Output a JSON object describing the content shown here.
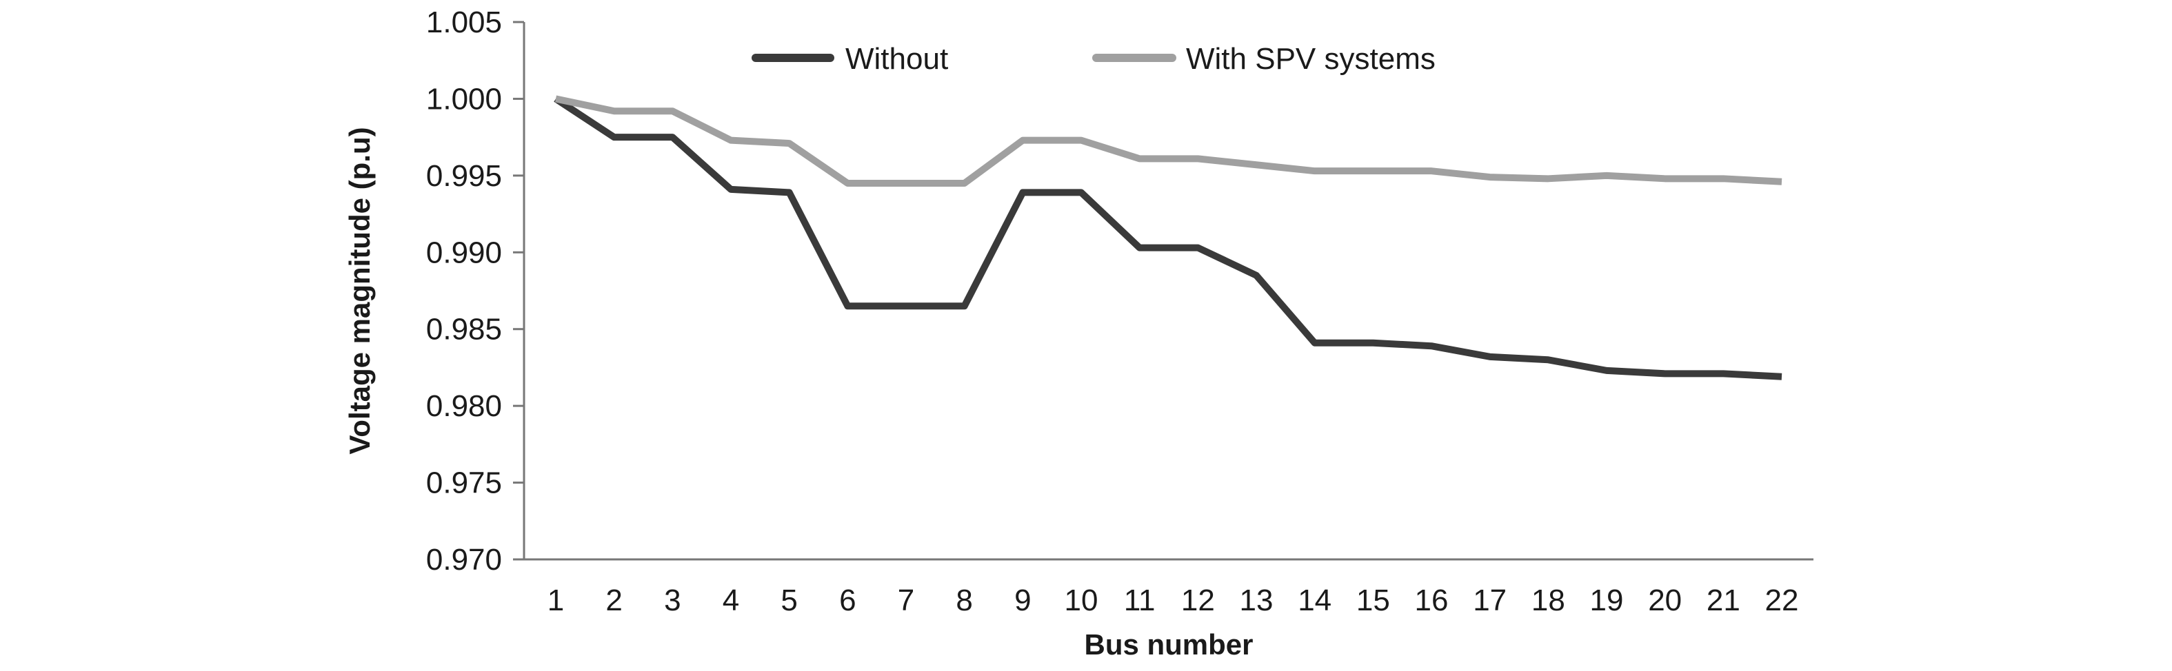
{
  "chart_data": {
    "type": "line",
    "title": "",
    "xlabel": "Bus number",
    "ylabel": "Voltage magnitude (p.u)",
    "categories": [
      1,
      2,
      3,
      4,
      5,
      6,
      7,
      8,
      9,
      10,
      11,
      12,
      13,
      14,
      15,
      16,
      17,
      18,
      19,
      20,
      21,
      22
    ],
    "ylim": [
      0.97,
      1.005
    ],
    "yticks": [
      "0.970",
      "0.975",
      "0.980",
      "0.985",
      "0.990",
      "0.995",
      "1.000",
      "1.005"
    ],
    "grid": false,
    "legend_position": "top",
    "series": [
      {
        "name": "Without",
        "color": "#3a3a3a",
        "values": [
          1.0,
          0.9975,
          0.9975,
          0.9941,
          0.9939,
          0.9865,
          0.9865,
          0.9865,
          0.9939,
          0.9939,
          0.9903,
          0.9903,
          0.9885,
          0.9841,
          0.9841,
          0.9839,
          0.9832,
          0.983,
          0.9823,
          0.9821,
          0.9821,
          0.9819
        ]
      },
      {
        "name": "With SPV systems",
        "color": "#a0a0a0",
        "values": [
          1.0,
          0.9992,
          0.9992,
          0.9973,
          0.9971,
          0.9945,
          0.9945,
          0.9945,
          0.9973,
          0.9973,
          0.9961,
          0.9961,
          0.9957,
          0.9953,
          0.9953,
          0.9953,
          0.9949,
          0.9948,
          0.995,
          0.9948,
          0.9948,
          0.9946
        ]
      }
    ]
  }
}
